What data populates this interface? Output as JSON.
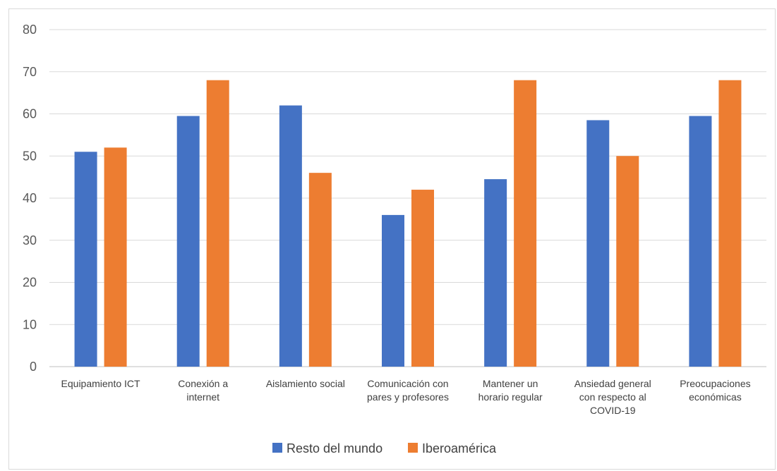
{
  "chart_data": {
    "type": "bar",
    "title": "",
    "xlabel": "",
    "ylabel": "",
    "ylim": [
      0,
      80
    ],
    "yticks": [
      0,
      10,
      20,
      30,
      40,
      50,
      60,
      70,
      80
    ],
    "grid": true,
    "legend_position": "bottom",
    "categories": [
      [
        "Equipamiento ICT"
      ],
      [
        "Conexión a",
        "internet"
      ],
      [
        "Aislamiento social"
      ],
      [
        "Comunicación con",
        "pares y profesores"
      ],
      [
        "Mantener un",
        "horario regular"
      ],
      [
        "Ansiedad general",
        "con respecto al",
        "COVID-19"
      ],
      [
        "Preocupaciones",
        "económicas"
      ]
    ],
    "series": [
      {
        "name": "Resto del mundo",
        "color": "#4472c4",
        "values": [
          51,
          59.5,
          62,
          36,
          44.5,
          58.5,
          59.5
        ]
      },
      {
        "name": "Iberoamérica",
        "color": "#ed7d31",
        "values": [
          52,
          68,
          46,
          42,
          68,
          50,
          68
        ]
      }
    ],
    "gridline_color": "#d9d9d9",
    "axis_color": "#bfbfbf"
  }
}
